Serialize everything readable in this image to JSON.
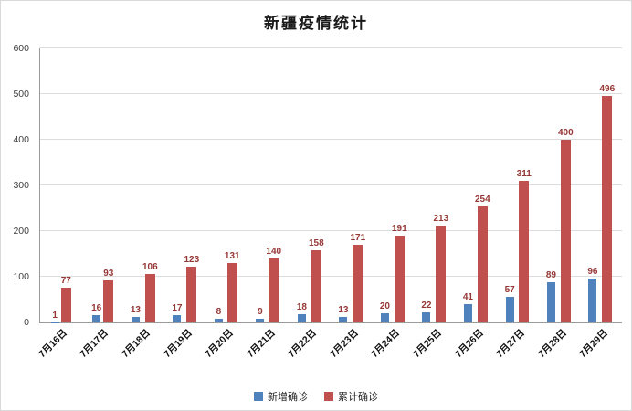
{
  "chart_data": {
    "type": "bar",
    "title": "新疆疫情统计",
    "categories": [
      "7月16日",
      "7月17日",
      "7月18日",
      "7月19日",
      "7月20日",
      "7月21日",
      "7月22日",
      "7月23日",
      "7月24日",
      "7月25日",
      "7月26日",
      "7月27日",
      "7月28日",
      "7月29日"
    ],
    "series": [
      {
        "name": "新增确诊",
        "color": "#4F81BD",
        "values": [
          1,
          16,
          13,
          17,
          8,
          9,
          18,
          13,
          20,
          22,
          41,
          57,
          89,
          96
        ]
      },
      {
        "name": "累计确诊",
        "color": "#C0504D",
        "values": [
          77,
          93,
          106,
          123,
          131,
          140,
          158,
          171,
          191,
          213,
          254,
          311,
          400,
          496
        ]
      }
    ],
    "xlabel": "",
    "ylabel": "",
    "ylim": [
      0,
      600
    ],
    "yticks": [
      0,
      100,
      200,
      300,
      400,
      500,
      600
    ],
    "grid": true,
    "legend_position": "bottom",
    "label_color": "#953735"
  }
}
